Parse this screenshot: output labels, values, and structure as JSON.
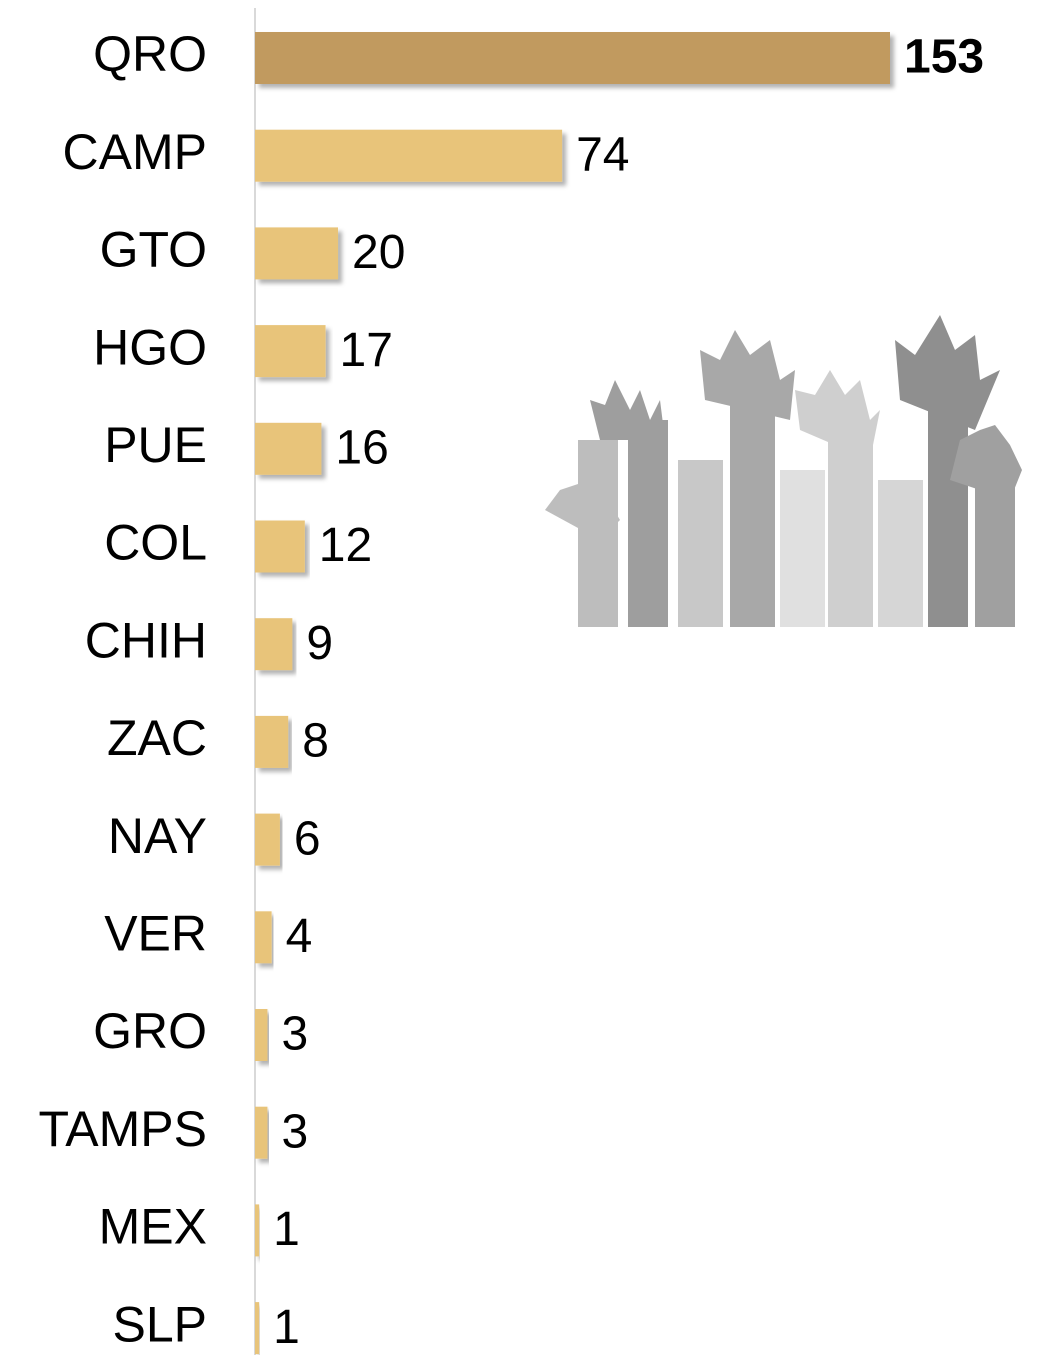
{
  "chart_data": {
    "type": "bar",
    "orientation": "horizontal",
    "categories": [
      "QRO",
      "CAMP",
      "GTO",
      "HGO",
      "PUE",
      "COL",
      "CHIH",
      "ZAC",
      "NAY",
      "VER",
      "GRO",
      "TAMPS",
      "MEX",
      "SLP"
    ],
    "values": [
      153,
      74,
      20,
      17,
      16,
      12,
      9,
      8,
      6,
      4,
      3,
      3,
      1,
      1
    ],
    "colors": [
      "#c19a5f",
      "#e8c47a",
      "#e8c47a",
      "#e8c47a",
      "#e8c47a",
      "#e8c47a",
      "#e8c47a",
      "#e8c47a",
      "#e8c47a",
      "#e8c47a",
      "#e8c47a",
      "#e8c47a",
      "#e8c47a",
      "#e8c47a"
    ]
  }
}
